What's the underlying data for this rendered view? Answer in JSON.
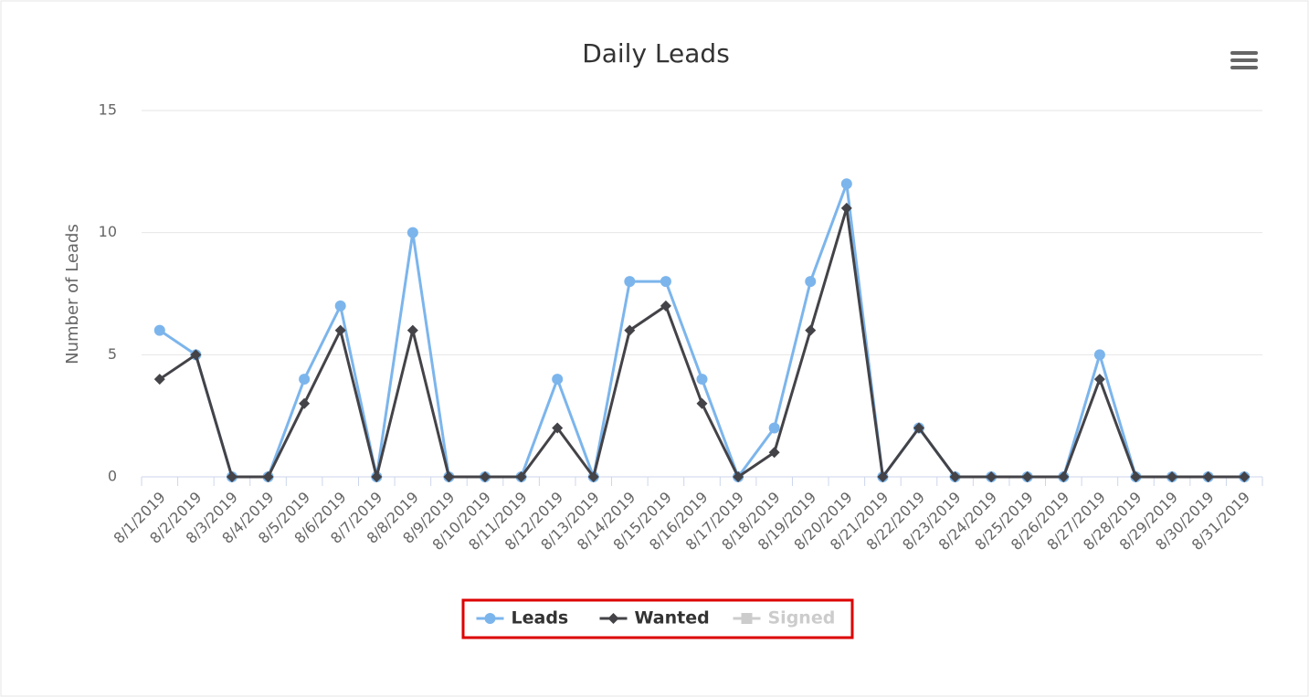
{
  "chart_data": {
    "type": "line",
    "title": "Daily Leads",
    "y_label": "Number of Leads",
    "categories": [
      "8/1/2019",
      "8/2/2019",
      "8/3/2019",
      "8/4/2019",
      "8/5/2019",
      "8/6/2019",
      "8/7/2019",
      "8/8/2019",
      "8/9/2019",
      "8/10/2019",
      "8/11/2019",
      "8/12/2019",
      "8/13/2019",
      "8/14/2019",
      "8/15/2019",
      "8/16/2019",
      "8/17/2019",
      "8/18/2019",
      "8/19/2019",
      "8/20/2019",
      "8/21/2019",
      "8/22/2019",
      "8/23/2019",
      "8/24/2019",
      "8/25/2019",
      "8/26/2019",
      "8/27/2019",
      "8/28/2019",
      "8/29/2019",
      "8/30/2019",
      "8/31/2019"
    ],
    "series": [
      {
        "name": "Leads",
        "color": "#7cb5ec",
        "marker": "circle",
        "values": [
          6,
          5,
          0,
          0,
          4,
          7,
          0,
          10,
          0,
          0,
          0,
          4,
          0,
          8,
          8,
          4,
          0,
          2,
          8,
          12,
          0,
          2,
          0,
          0,
          0,
          0,
          5,
          0,
          0,
          0,
          0
        ]
      },
      {
        "name": "Wanted",
        "color": "#434348",
        "marker": "diamond",
        "values": [
          4,
          5,
          0,
          0,
          3,
          6,
          0,
          6,
          0,
          0,
          0,
          2,
          0,
          6,
          7,
          3,
          0,
          1,
          6,
          11,
          0,
          2,
          0,
          0,
          0,
          0,
          4,
          0,
          0,
          0,
          0
        ]
      },
      {
        "name": "Signed",
        "color": "#cccccc",
        "marker": "square",
        "visible": false
      }
    ],
    "ylim": [
      0,
      15
    ],
    "yticks": [
      0,
      5,
      10,
      15
    ],
    "grid": true
  }
}
